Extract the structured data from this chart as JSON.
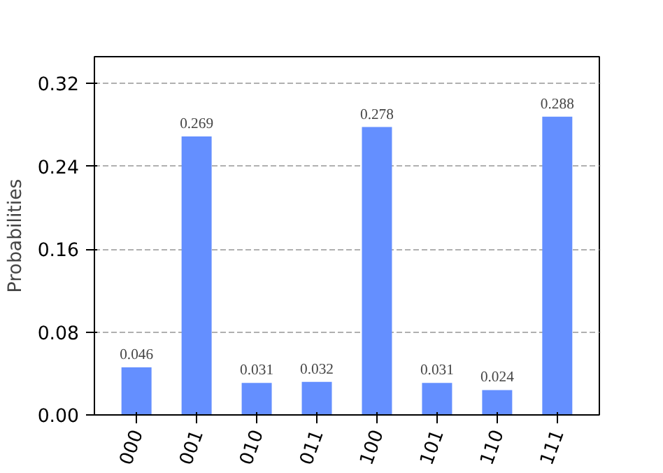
{
  "chart_data": {
    "type": "bar",
    "ylabel": "Probabilities",
    "categories": [
      "000",
      "001",
      "010",
      "011",
      "100",
      "101",
      "110",
      "111"
    ],
    "values": [
      0.046,
      0.269,
      0.031,
      0.032,
      0.278,
      0.031,
      0.024,
      0.288
    ],
    "color": "#648fff",
    "ylim": [
      0,
      0.346
    ],
    "yticks": [
      {
        "value": 0,
        "label": "0.00"
      },
      {
        "value": 0.08,
        "label": "0.08"
      },
      {
        "value": 0.16,
        "label": "0.16"
      },
      {
        "value": 0.24,
        "label": "0.24"
      },
      {
        "value": 0.32,
        "label": "0.32"
      }
    ],
    "grid": "y",
    "data_labels": true
  }
}
